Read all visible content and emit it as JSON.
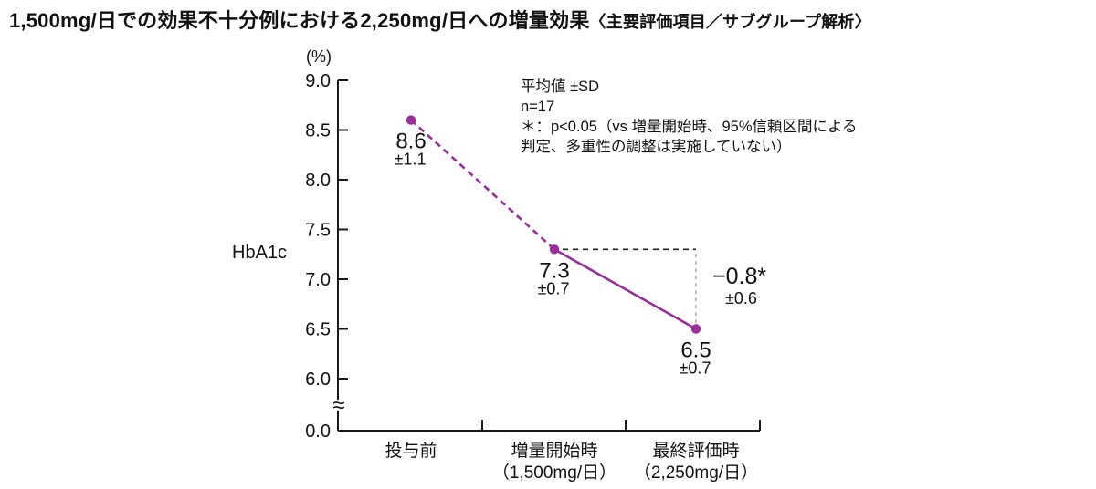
{
  "title": {
    "main": "1,500mg/日での効果不十分例における2,250mg/日への増量効果",
    "note": "〈主要評価項目／サブグループ解析〉"
  },
  "chart_data": {
    "type": "line",
    "title": "1,500mg/日での効果不十分例における2,250mg/日への増量効果〈主要評価項目／サブグループ解析〉",
    "unit_label": "(%)",
    "ylabel": "HbA1c",
    "ylim": [
      0.0,
      9.0
    ],
    "ylim_display": [
      6.0,
      9.0
    ],
    "y_axis_break": true,
    "y_ticks": [
      9.0,
      8.5,
      8.0,
      7.5,
      7.0,
      6.5,
      6.0,
      0.0
    ],
    "grid": false,
    "categories": [
      "投与前",
      "増量開始時（1,500mg/日）",
      "最終評価時（2,250mg/日）"
    ],
    "category_lines": [
      [
        "投与前"
      ],
      [
        "増量開始時",
        "（1,500mg/日）"
      ],
      [
        "最終評価時",
        "（2,250mg/日）"
      ]
    ],
    "series": [
      {
        "name": "HbA1c",
        "values": [
          8.6,
          7.3,
          6.5
        ],
        "value_labels": [
          "8.6",
          "7.3",
          "6.5"
        ],
        "sd_labels": [
          "±1.1",
          "±0.7",
          "±0.7"
        ],
        "segment_styles": [
          "dashed",
          "solid"
        ]
      }
    ],
    "difference": {
      "label": "−0.8*",
      "sd": "±0.6"
    },
    "annotations": [
      "平均値 ±SD",
      "n=17",
      "＊：p<0.05（vs 増量開始時、95%信頼区間による",
      "判定、多重性の調整は実施していない）"
    ],
    "colors": {
      "line": "#9B2C9C",
      "axis": "#1A1A1A",
      "text": "#111111",
      "reference_dash": "#222222",
      "reference_dash_light": "#B3B3B3"
    }
  }
}
